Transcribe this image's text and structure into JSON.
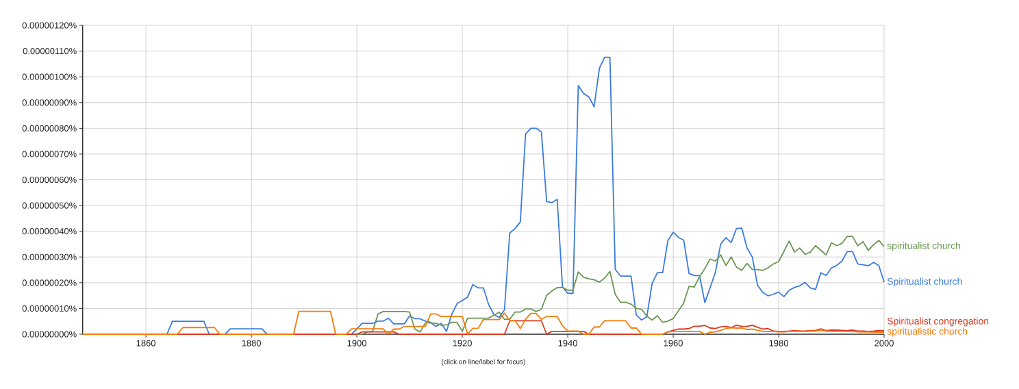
{
  "chart_data": {
    "type": "line",
    "xlim": [
      1848,
      2000
    ],
    "xticks": [
      1860,
      1880,
      1900,
      1920,
      1940,
      1960,
      1980,
      2000
    ],
    "ylim": [
      0,
      1.2e-06
    ],
    "yticks": [
      {
        "value": 0,
        "label": "0.00000000%"
      },
      {
        "value": 1e-07,
        "label": "0.00000010%"
      },
      {
        "value": 2e-07,
        "label": "0.00000020%"
      },
      {
        "value": 3e-07,
        "label": "0.00000030%"
      },
      {
        "value": 4e-07,
        "label": "0.00000040%"
      },
      {
        "value": 5e-07,
        "label": "0.00000050%"
      },
      {
        "value": 6e-07,
        "label": "0.00000060%"
      },
      {
        "value": 7e-07,
        "label": "0.00000070%"
      },
      {
        "value": 8e-07,
        "label": "0.00000080%"
      },
      {
        "value": 9e-07,
        "label": "0.00000090%"
      },
      {
        "value": 1e-06,
        "label": "0.00000100%"
      },
      {
        "value": 1.1e-06,
        "label": "0.00000110%"
      },
      {
        "value": 1.2e-06,
        "label": "0.00000120%"
      }
    ],
    "grid": true,
    "annotations": [
      "(click on line/label for focus)"
    ],
    "series": [
      {
        "name": "Spiritualist church",
        "color": "#3a7be0",
        "x": [
          1848,
          1864,
          1865,
          1871,
          1872,
          1875,
          1876,
          1882,
          1883,
          1899,
          1900,
          1901,
          1902,
          1903,
          1904,
          1905,
          1906,
          1907,
          1908,
          1909,
          1910,
          1911,
          1912,
          1913,
          1914,
          1915,
          1916,
          1917,
          1918,
          1919,
          1920,
          1921,
          1922,
          1923,
          1924,
          1925,
          1926,
          1927,
          1928,
          1929,
          1930,
          1931,
          1932,
          1933,
          1934,
          1935,
          1936,
          1937,
          1938,
          1939,
          1940,
          1941,
          1942,
          1943,
          1944,
          1945,
          1946,
          1947,
          1948,
          1949,
          1950,
          1951,
          1952,
          1953,
          1954,
          1955,
          1956,
          1957,
          1958,
          1959,
          1960,
          1961,
          1962,
          1963,
          1964,
          1965,
          1966,
          1967,
          1968,
          1969,
          1970,
          1971,
          1972,
          1973,
          1974,
          1975,
          1976,
          1977,
          1978,
          1979,
          1980,
          1981,
          1982,
          1983,
          1984,
          1985,
          1986,
          1987,
          1988,
          1989,
          1990,
          1991,
          1992,
          1993,
          1994,
          1995,
          1996,
          1997,
          1998,
          1999,
          2000
        ],
        "values": [
          0,
          0,
          5e-08,
          5e-08,
          0,
          0,
          2.1e-08,
          2.1e-08,
          0,
          0,
          2e-08,
          4.2e-08,
          4.2e-08,
          4.2e-08,
          5.1e-08,
          5.1e-08,
          6.2e-08,
          4e-08,
          4e-08,
          4e-08,
          7.1e-08,
          6e-08,
          6e-08,
          5.1e-08,
          4.6e-08,
          3e-08,
          4.2e-08,
          1.1e-08,
          7.7e-08,
          1.19e-07,
          1.31e-07,
          1.44e-07,
          1.93e-07,
          1.8e-07,
          1.8e-07,
          1.15e-07,
          7.6e-08,
          6.5e-08,
          9.5e-08,
          3.93e-07,
          4.1e-07,
          4.36e-07,
          7.78e-07,
          8e-07,
          8e-07,
          7.86e-07,
          5.15e-07,
          5.11e-07,
          5.24e-07,
          1.84e-07,
          1.59e-07,
          1.59e-07,
          9.66e-07,
          9.35e-07,
          9.22e-07,
          8.84e-07,
          1.033e-06,
          1.076e-06,
          1.076e-06,
          2.52e-07,
          2.26e-07,
          2.26e-07,
          2.26e-07,
          7.5e-08,
          5.5e-08,
          6.8e-08,
          1.97e-07,
          2.39e-07,
          2.39e-07,
          3.64e-07,
          3.96e-07,
          3.76e-07,
          3.65e-07,
          2.36e-07,
          2.28e-07,
          2.28e-07,
          1.23e-07,
          1.81e-07,
          2.4e-07,
          3.5e-07,
          3.75e-07,
          3.56e-07,
          4.11e-07,
          4.12e-07,
          3.35e-07,
          3e-07,
          1.9e-07,
          1.62e-07,
          1.49e-07,
          1.55e-07,
          1.64e-07,
          1.46e-07,
          1.71e-07,
          1.82e-07,
          1.88e-07,
          2.01e-07,
          1.8e-07,
          1.74e-07,
          2.39e-07,
          2.28e-07,
          2.57e-07,
          2.67e-07,
          2.84e-07,
          3.21e-07,
          3.21e-07,
          2.73e-07,
          2.7e-07,
          2.66e-07,
          2.79e-07,
          2.67e-07,
          2.02e-07
        ]
      },
      {
        "name": "spiritualist church",
        "color": "#6b9652",
        "x": [
          1848,
          1901,
          1902,
          1903,
          1904,
          1905,
          1906,
          1907,
          1908,
          1909,
          1910,
          1911,
          1912,
          1913,
          1914,
          1915,
          1916,
          1917,
          1918,
          1919,
          1920,
          1921,
          1922,
          1923,
          1924,
          1925,
          1926,
          1927,
          1928,
          1929,
          1930,
          1931,
          1932,
          1933,
          1934,
          1935,
          1936,
          1937,
          1938,
          1939,
          1940,
          1941,
          1942,
          1943,
          1944,
          1945,
          1946,
          1947,
          1948,
          1949,
          1950,
          1951,
          1952,
          1953,
          1954,
          1955,
          1956,
          1957,
          1958,
          1959,
          1960,
          1961,
          1962,
          1963,
          1964,
          1965,
          1966,
          1967,
          1968,
          1969,
          1970,
          1971,
          1972,
          1973,
          1974,
          1975,
          1976,
          1977,
          1978,
          1979,
          1980,
          1981,
          1982,
          1983,
          1984,
          1985,
          1986,
          1987,
          1988,
          1989,
          1990,
          1991,
          1992,
          1993,
          1994,
          1995,
          1996,
          1997,
          1998,
          1999,
          2000
        ],
        "values": [
          0,
          0,
          9e-09,
          1.1e-08,
          7.8e-08,
          8.8e-08,
          8.8e-08,
          8.8e-08,
          8.8e-08,
          8.8e-08,
          8.6e-08,
          2e-08,
          9e-09,
          4.4e-08,
          4.4e-08,
          4.2e-08,
          3.5e-08,
          3.6e-08,
          4.6e-08,
          4.6e-08,
          1.1e-08,
          6.2e-08,
          6.2e-08,
          6.2e-08,
          6.2e-08,
          6.3e-08,
          7.3e-08,
          8.6e-08,
          5.8e-08,
          5.8e-08,
          8.6e-08,
          8.6e-08,
          9.8e-08,
          9.8e-08,
          8.8e-08,
          9.7e-08,
          1.51e-07,
          1.68e-07,
          1.81e-07,
          1.82e-07,
          1.71e-07,
          1.71e-07,
          2.42e-07,
          2.21e-07,
          2.15e-07,
          2.12e-07,
          2.02e-07,
          2.18e-07,
          2.44e-07,
          1.55e-07,
          1.24e-07,
          1.24e-07,
          1.17e-07,
          1e-07,
          9.7e-08,
          7e-08,
          5.5e-08,
          7.2e-08,
          4.6e-08,
          5.1e-08,
          6.1e-08,
          9.1e-08,
          1.22e-07,
          1.86e-07,
          1.83e-07,
          2.24e-07,
          2.55e-07,
          2.92e-07,
          2.84e-07,
          3.08e-07,
          2.67e-07,
          3e-07,
          2.61e-07,
          2.48e-07,
          2.75e-07,
          2.52e-07,
          2.51e-07,
          2.48e-07,
          2.58e-07,
          2.73e-07,
          2.82e-07,
          3.22e-07,
          3.62e-07,
          3.19e-07,
          3.35e-07,
          3.1e-07,
          3.19e-07,
          3.44e-07,
          3.26e-07,
          3.08e-07,
          3.55e-07,
          3.44e-07,
          3.53e-07,
          3.8e-07,
          3.8e-07,
          3.44e-07,
          3.59e-07,
          3.26e-07,
          3.48e-07,
          3.64e-07,
          3.41e-07
        ]
      },
      {
        "name": "Spiritualist congregation",
        "color": "#dc3b1f",
        "x": [
          1848,
          1900,
          1901,
          1907,
          1908,
          1928,
          1929,
          1935,
          1936,
          1937,
          1943,
          1944,
          1958,
          1959,
          1960,
          1961,
          1962,
          1963,
          1964,
          1965,
          1966,
          1967,
          1968,
          1969,
          1970,
          1971,
          1972,
          1973,
          1974,
          1975,
          1976,
          1977,
          1978,
          1979,
          1980,
          1981,
          1982,
          1983,
          1984,
          1985,
          1986,
          1987,
          1988,
          1989,
          1990,
          1991,
          1992,
          1993,
          1994,
          1995,
          1996,
          1997,
          1998,
          1999,
          2000
        ],
        "values": [
          0,
          0,
          9e-09,
          9e-09,
          0,
          0,
          5.2e-08,
          5.2e-08,
          0,
          1.1e-08,
          1.1e-08,
          0,
          0,
          9e-09,
          1.5e-08,
          2e-08,
          2e-08,
          2.2e-08,
          3.1e-08,
          3.1e-08,
          3.4e-08,
          2.4e-08,
          2.2e-08,
          2.8e-08,
          3e-08,
          2.6e-08,
          3.5e-08,
          3e-08,
          3e-08,
          3.5e-08,
          2.7e-08,
          2e-08,
          2.2e-08,
          1.2e-08,
          1.1e-08,
          1.1e-08,
          1.2e-08,
          1.4e-08,
          1.2e-08,
          1.2e-08,
          1.4e-08,
          1.5e-08,
          2.1e-08,
          1.4e-08,
          1.6e-08,
          1.6e-08,
          1.5e-08,
          1.4e-08,
          1.6e-08,
          1.2e-08,
          1.2e-08,
          1.1e-08,
          1.2e-08,
          1.4e-08,
          1.4e-08
        ]
      },
      {
        "name": "spiritualistic church",
        "color": "#f47b0a",
        "x": [
          1848,
          1866,
          1867,
          1873,
          1874,
          1888,
          1889,
          1895,
          1896,
          1898,
          1899,
          1905,
          1906,
          1907,
          1908,
          1909,
          1913,
          1914,
          1915,
          1916,
          1920,
          1921,
          1922,
          1923,
          1924,
          1927,
          1928,
          1929,
          1930,
          1931,
          1932,
          1933,
          1934,
          1935,
          1936,
          1938,
          1939,
          1940,
          1942,
          1943,
          1944,
          1945,
          1946,
          1947,
          1951,
          1952,
          1953,
          1954,
          1958,
          1959,
          1960,
          1965,
          1966,
          1967,
          1968,
          1969,
          1970,
          1971,
          1972,
          1973,
          1974,
          1975,
          1976,
          1977,
          1979,
          1980,
          1981,
          1982,
          1983,
          1984,
          1985,
          1986,
          1987,
          1988,
          1989,
          1990,
          1994,
          1995,
          2000
        ],
        "values": [
          0,
          0,
          2.6e-08,
          2.6e-08,
          0,
          0,
          8.9e-08,
          8.9e-08,
          0,
          0,
          2.1e-08,
          2.1e-08,
          0,
          2e-08,
          2e-08,
          3e-08,
          3e-08,
          7.9e-08,
          7.9e-08,
          6.9e-08,
          6.9e-08,
          0,
          2.3e-08,
          2.3e-08,
          5.7e-08,
          5.7e-08,
          8.2e-08,
          5.3e-08,
          5.3e-08,
          2.2e-08,
          5.8e-08,
          8.1e-08,
          8.1e-08,
          5.8e-08,
          6.9e-08,
          6.9e-08,
          3.3e-08,
          1.2e-08,
          1.2e-08,
          0,
          0,
          2.8e-08,
          2.8e-08,
          5.2e-08,
          5.2e-08,
          2.4e-08,
          2.4e-08,
          0,
          0,
          9e-09,
          1.1e-08,
          1.1e-08,
          0,
          8e-09,
          9e-09,
          1.5e-08,
          2.2e-08,
          2.5e-08,
          2.4e-08,
          2.4e-08,
          1.8e-08,
          2e-08,
          1.5e-08,
          1.1e-08,
          1.1e-08,
          9e-09,
          9e-09,
          1.1e-08,
          1.1e-08,
          1.2e-08,
          1.1e-08,
          1.2e-08,
          1.2e-08,
          1.5e-08,
          1.2e-08,
          1.1e-08,
          1.1e-08,
          9e-09,
          8e-09
        ]
      }
    ]
  }
}
